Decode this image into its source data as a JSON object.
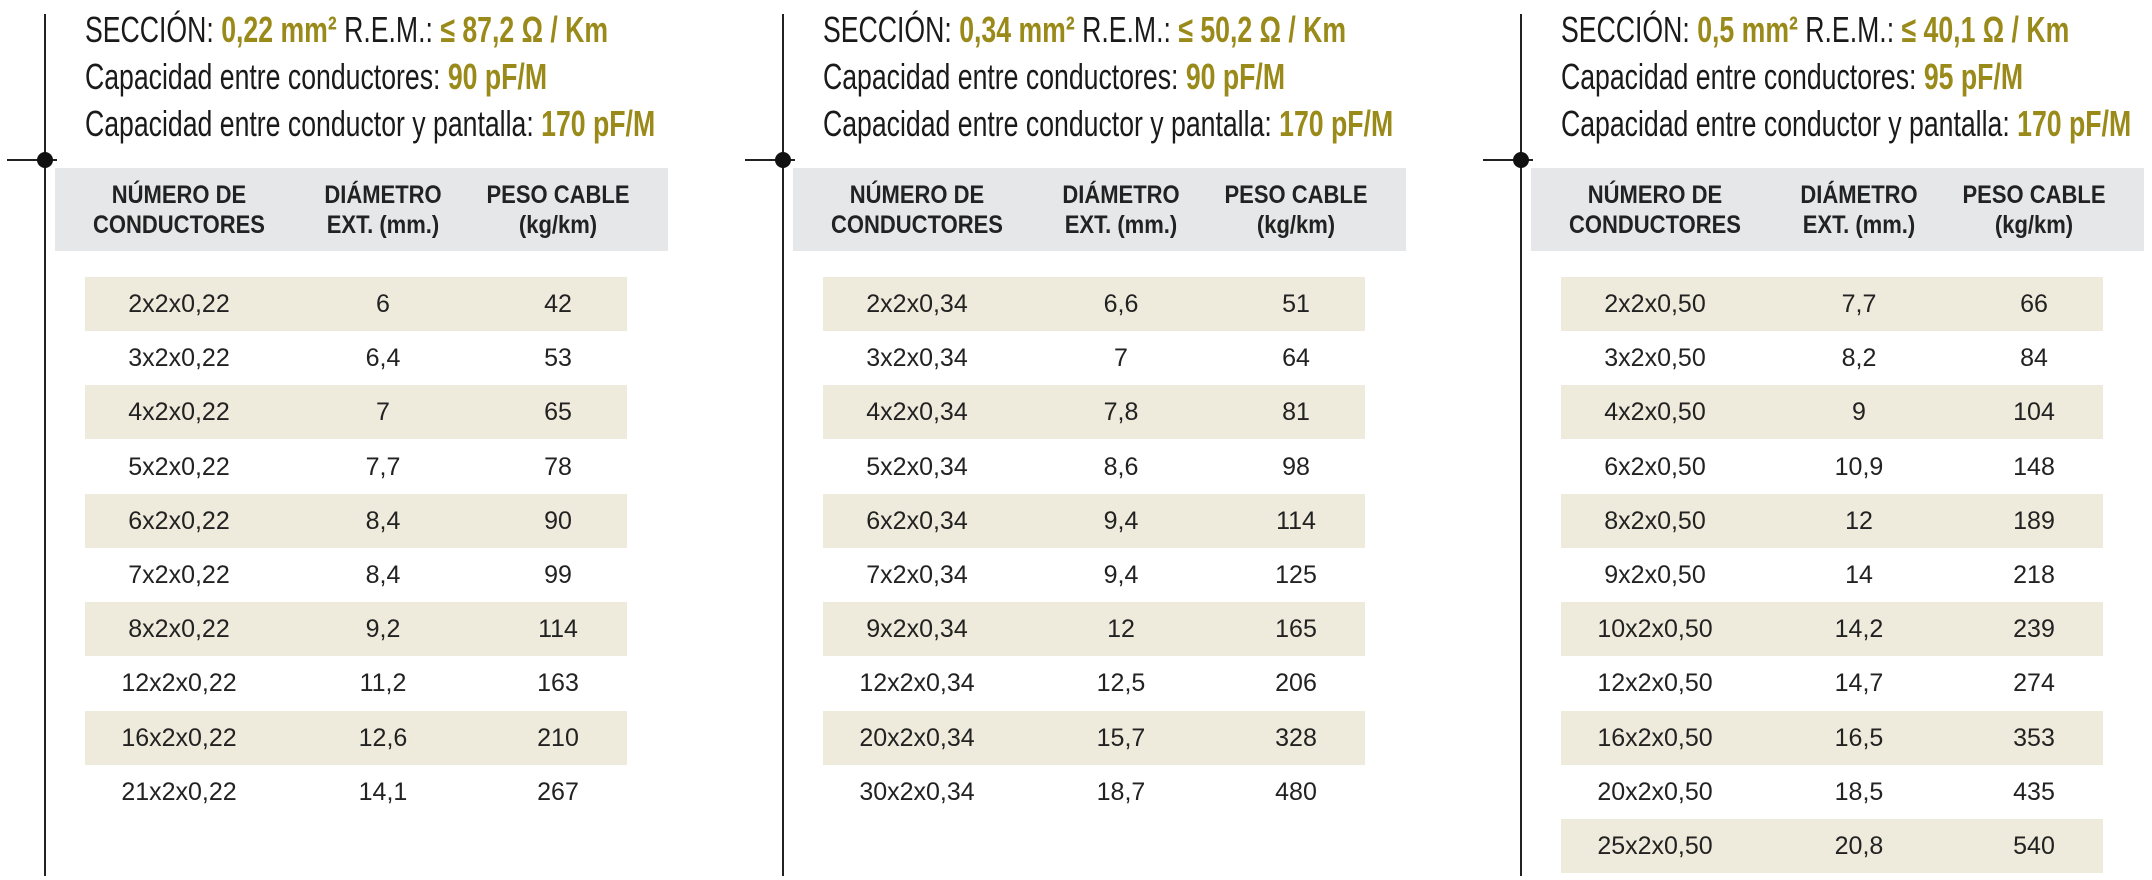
{
  "panels": [
    {
      "spec": {
        "line1": [
          "SECCIÓN:",
          "0,22 mm²",
          "R.E.M.:",
          "≤ 87,2 Ω / Km"
        ],
        "line2": [
          "Capacidad entre conductores:",
          "90 pF/M"
        ],
        "line3": [
          "Capacidad entre conductor y pantalla:",
          "170 pF/M"
        ]
      },
      "headers": [
        [
          "NÚMERO DE",
          "CONDUCTORES"
        ],
        [
          "DIÁMETRO",
          "EXT. (mm.)"
        ],
        [
          "PESO CABLE",
          "(kg/km)"
        ]
      ],
      "rows": [
        [
          "2x2x0,22",
          "6",
          "42"
        ],
        [
          "3x2x0,22",
          "6,4",
          "53"
        ],
        [
          "4x2x0,22",
          "7",
          "65"
        ],
        [
          "5x2x0,22",
          "7,7",
          "78"
        ],
        [
          "6x2x0,22",
          "8,4",
          "90"
        ],
        [
          "7x2x0,22",
          "8,4",
          "99"
        ],
        [
          "8x2x0,22",
          "9,2",
          "114"
        ],
        [
          "12x2x0,22",
          "11,2",
          "163"
        ],
        [
          "16x2x0,22",
          "12,6",
          "210"
        ],
        [
          "21x2x0,22",
          "14,1",
          "267"
        ]
      ]
    },
    {
      "spec": {
        "line1": [
          "SECCIÓN:",
          "0,34 mm²",
          "R.E.M.:",
          "≤ 50,2 Ω / Km"
        ],
        "line2": [
          "Capacidad entre conductores:",
          "90 pF/M"
        ],
        "line3": [
          "Capacidad entre conductor y pantalla:",
          "170 pF/M"
        ]
      },
      "headers": [
        [
          "NÚMERO DE",
          "CONDUCTORES"
        ],
        [
          "DIÁMETRO",
          "EXT. (mm.)"
        ],
        [
          "PESO CABLE",
          "(kg/km)"
        ]
      ],
      "rows": [
        [
          "2x2x0,34",
          "6,6",
          "51"
        ],
        [
          "3x2x0,34",
          "7",
          "64"
        ],
        [
          "4x2x0,34",
          "7,8",
          "81"
        ],
        [
          "5x2x0,34",
          "8,6",
          "98"
        ],
        [
          "6x2x0,34",
          "9,4",
          "114"
        ],
        [
          "7x2x0,34",
          "9,4",
          "125"
        ],
        [
          "9x2x0,34",
          "12",
          "165"
        ],
        [
          "12x2x0,34",
          "12,5",
          "206"
        ],
        [
          "20x2x0,34",
          "15,7",
          "328"
        ],
        [
          "30x2x0,34",
          "18,7",
          "480"
        ]
      ]
    },
    {
      "spec": {
        "line1": [
          "SECCIÓN:",
          "0,5 mm²",
          "R.E.M.:",
          "≤ 40,1 Ω / Km"
        ],
        "line2": [
          "Capacidad entre conductores:",
          "95 pF/M"
        ],
        "line3": [
          "Capacidad entre conductor y pantalla:",
          "170 pF/M"
        ]
      },
      "headers": [
        [
          "NÚMERO DE",
          "CONDUCTORES"
        ],
        [
          "DIÁMETRO",
          "EXT. (mm.)"
        ],
        [
          "PESO CABLE",
          "(kg/km)"
        ]
      ],
      "rows": [
        [
          "2x2x0,50",
          "7,7",
          "66"
        ],
        [
          "3x2x0,50",
          "8,2",
          "84"
        ],
        [
          "4x2x0,50",
          "9",
          "104"
        ],
        [
          "6x2x0,50",
          "10,9",
          "148"
        ],
        [
          "8x2x0,50",
          "12",
          "189"
        ],
        [
          "9x2x0,50",
          "14",
          "218"
        ],
        [
          "10x2x0,50",
          "14,2",
          "239"
        ],
        [
          "12x2x0,50",
          "14,7",
          "274"
        ],
        [
          "16x2x0,50",
          "16,5",
          "353"
        ],
        [
          "20x2x0,50",
          "18,5",
          "435"
        ],
        [
          "25x2x0,50",
          "20,8",
          "540"
        ]
      ]
    }
  ]
}
